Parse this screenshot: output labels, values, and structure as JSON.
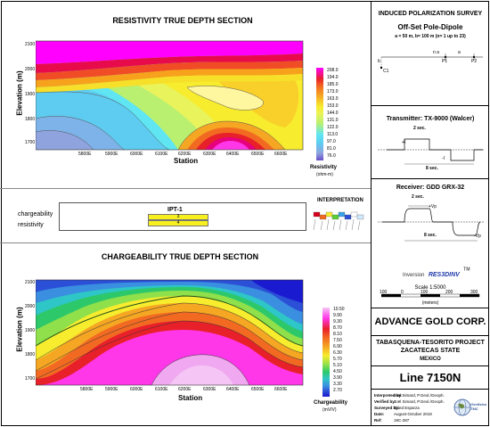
{
  "left": {
    "resistivity": {
      "title": "RESISTIVITY TRUE DEPTH SECTION",
      "ylabel": "Elevation (m)",
      "xlabel": "Station",
      "yticks": [
        "2100",
        "2000",
        "1900",
        "1800",
        "1700"
      ],
      "xticks": [
        "5800E",
        "5900E",
        "6000E",
        "6100E",
        "6200E",
        "6300E",
        "6400E",
        "6500E",
        "6600E"
      ],
      "legend_values": [
        "208.0",
        "194.0",
        "185.0",
        "173.0",
        "163.0",
        "153.0",
        "144.0",
        "131.0",
        "122.0",
        "113.0",
        "97.0",
        "81.0",
        "76.0"
      ],
      "legend_title": "Resistivity",
      "legend_unit": "(ohm-m)"
    },
    "chargeability": {
      "title": "CHARGEABILITY TRUE DEPTH SECTION",
      "ylabel": "Elevation (m)",
      "xlabel": "Station",
      "yticks": [
        "2100",
        "2000",
        "1900",
        "1800",
        "1700"
      ],
      "xticks": [
        "5800E",
        "5900E",
        "6000E",
        "6100E",
        "6200E",
        "6300E",
        "6400E",
        "6500E",
        "6600E"
      ],
      "legend_values": [
        "10.50",
        "9.90",
        "9.30",
        "8.70",
        "8.10",
        "7.50",
        "6.90",
        "6.30",
        "5.70",
        "5.10",
        "4.50",
        "3.90",
        "3.30",
        "2.70"
      ],
      "legend_title": "Chargeability",
      "legend_unit": "(mV/V)"
    },
    "interp": {
      "row1": "chargeability",
      "row2": "resistivity",
      "anomaly": "IPT-1",
      "anomaly_val1": "3",
      "anomaly_val2": "4",
      "legend_title": "INTERPRETATION"
    }
  },
  "right": {
    "survey_title": "INDUCED POLARIZATION SURVEY",
    "array": "Off-Set Pole-Dipole",
    "params": "a = 50 m, b= 100 m (n= 1 up to 23)",
    "array_labels": {
      "n": "n a",
      "a": "a",
      "p1": "P1",
      "p2": "P2",
      "c1": "C1",
      "b": "b"
    },
    "transmitter": "Transmitter: TX-9000 (Walcer)",
    "tx_period": "2 sec.",
    "tx_cycle": "8 sec.",
    "tx_plus": "+I",
    "tx_minus": "-I",
    "receiver": "Receiver: GDD GRX-32",
    "rx_period": "2 sec.",
    "rx_cycle": "8 sec.",
    "rx_plus": "+Vp",
    "rx_minus": "-Vp",
    "software_prefix": "Inversion",
    "software_name": "RES3DINV",
    "software_tm": "TM",
    "scale": "Scale 1:5000",
    "scale_unit": "(meters)",
    "scale_ticks": [
      "100",
      "0",
      "100",
      "200",
      "300"
    ],
    "company": "ADVANCE GOLD CORP.",
    "project": "TABASQUENA-TESORITO PROJECT",
    "state": "ZACATECAS STATE",
    "country": "MEXICO",
    "line": "Line 7150N",
    "credits": [
      {
        "k": "Interpreted by:",
        "v": "Joël Simard, P.Geol./Geoph."
      },
      {
        "k": "Verified by:",
        "v": "Joël Simard, P.Geol./Geoph."
      },
      {
        "k": "Surveyed by:",
        "v": "Obed Esparza"
      },
      {
        "k": "Date:",
        "v": "August-October 2019"
      },
      {
        "k": "Ref:",
        "v": "19C-287"
      }
    ],
    "logo": "Geofisica TMC"
  }
}
